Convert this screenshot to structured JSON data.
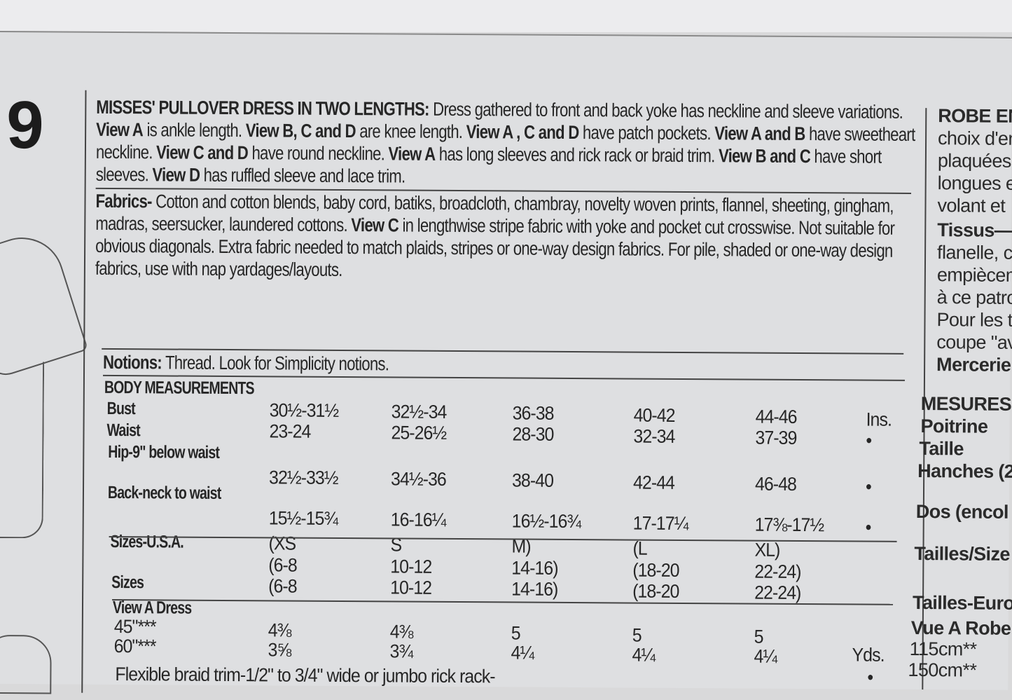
{
  "pattern_number_fragment": "9",
  "description": {
    "title": "MISSES' PULLOVER DRESS IN TWO LENGTHS:",
    "parts": [
      {
        "b": false,
        "t": " Dress gathered to front and back yoke has neckline and sleeve variations. "
      },
      {
        "b": true,
        "t": "View A"
      },
      {
        "b": false,
        "t": " is ankle length. "
      },
      {
        "b": true,
        "t": "View B, C and D"
      },
      {
        "b": false,
        "t": " are knee length. "
      },
      {
        "b": true,
        "t": "View A , C and D"
      },
      {
        "b": false,
        "t": " have patch pockets. "
      },
      {
        "b": true,
        "t": "View A and B"
      },
      {
        "b": false,
        "t": " have sweetheart neckline. "
      },
      {
        "b": true,
        "t": "View C and D"
      },
      {
        "b": false,
        "t": " have round neckline. "
      },
      {
        "b": true,
        "t": "View A"
      },
      {
        "b": false,
        "t": " has long sleeves and rick rack or braid trim. "
      },
      {
        "b": true,
        "t": "View B and C"
      },
      {
        "b": false,
        "t": " have short sleeves. "
      },
      {
        "b": true,
        "t": "View D"
      },
      {
        "b": false,
        "t": " has ruffled sleeve and lace trim."
      }
    ]
  },
  "fabrics": {
    "label": "Fabrics-",
    "text1": " Cotton and cotton blends, baby cord, batiks, broadcloth, chambray, novelty woven prints, flannel, sheeting, gingham, madras, seersucker, laundered cottons. ",
    "view": "View C",
    "text2": " in lengthwise stripe fabric with yoke and pocket cut crosswise. Not suitable for obvious diagonals. Extra fabric needed to match plaids, stripes or one-way design fabrics. For pile, shaded or one-way design fabrics, use with nap yardages/layouts."
  },
  "notions": {
    "label": "Notions:",
    "text": " Thread. Look for Simplicity notions."
  },
  "body_measurements": {
    "heading": "BODY MEASUREMENTS",
    "rows": [
      {
        "label": "Bust",
        "values": [
          "30½-31½",
          "32½-34",
          "36-38",
          "40-42",
          "44-46"
        ],
        "unit": "Ins."
      },
      {
        "label": "Waist",
        "values": [
          "23-24",
          "25-26½",
          "28-30",
          "32-34",
          "37-39"
        ],
        "unit": "•"
      },
      {
        "label": "Hip-9\" below waist",
        "values": [
          "32½-33½",
          "34½-36",
          "38-40",
          "42-44",
          "46-48"
        ],
        "unit": "•"
      },
      {
        "label": "Back-neck to waist",
        "values": [
          "15½-15¾",
          "16-16¼",
          "16½-16¾",
          "17-17¼",
          "17⅜-17½"
        ],
        "unit": "•"
      }
    ]
  },
  "sizes": {
    "usa_label": "Sizes-U.S.A.",
    "usa_letters": [
      "(XS",
      "S",
      "M)",
      "(L",
      "XL)"
    ],
    "usa_numbers": [
      "(6-8",
      "10-12",
      "14-16)",
      "(18-20",
      "22-24)"
    ],
    "label": "Sizes",
    "numbers": [
      "(6-8",
      "10-12",
      "14-16)",
      "(18-20",
      "22-24)"
    ]
  },
  "view_a": {
    "heading": "View A Dress",
    "rows": [
      {
        "label": "45\"***",
        "values": [
          "4⅜",
          "4⅜",
          "5",
          "5",
          "5"
        ],
        "unit": ""
      },
      {
        "label": "60\"***",
        "values": [
          "3⅝",
          "3¾",
          "4¼",
          "4¼",
          "4¼"
        ],
        "unit": "Yds."
      }
    ],
    "unit_mark": "•",
    "trim_line": "Flexible braid trim-1/2\" to 3/4\" wide or jumbo rick rack-"
  },
  "french_column": {
    "lines": [
      "ROBE EN",
      "choix d'en",
      "plaquées",
      "longues e",
      "volant et",
      "Tissus—",
      "flanelle, c",
      "empiècem",
      "à ce patro",
      "Pour les ti",
      "coupe \"av",
      "Mercerie:",
      "MESURES",
      "Poitrine",
      "Taille",
      "Hanches (2",
      "Dos (encol",
      "Tailles/Size",
      "Tailles-Euro",
      "Vue A Robe",
      "115cm**",
      "150cm**"
    ]
  }
}
